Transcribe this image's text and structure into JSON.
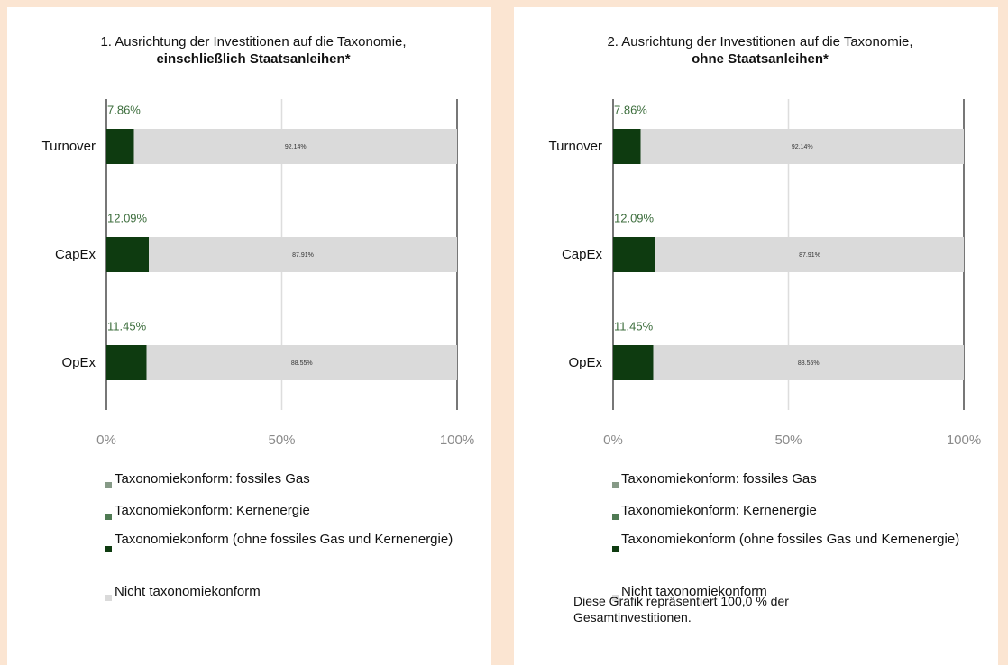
{
  "chart_data": [
    {
      "type": "bar",
      "orientation": "horizontal",
      "stacked": true,
      "title": "1. Ausrichtung der Investitionen auf die Taxonomie,",
      "subtitle": "einschließlich Staatsanleihen*",
      "categories": [
        "Turnover",
        "CapEx",
        "OpEx"
      ],
      "series": [
        {
          "name": "Taxonomiekonform: fossiles Gas",
          "color": "#869a87",
          "values": [
            0,
            0,
            0
          ]
        },
        {
          "name": "Taxonomiekonform: Kernenergie",
          "color": "#4f7a53",
          "values": [
            0,
            0,
            0
          ]
        },
        {
          "name": "Taxonomiekonform (ohne fossiles Gas und Kernenergie)",
          "color": "#0e3b10",
          "values": [
            7.86,
            12.09,
            11.45
          ],
          "value_labels": [
            "7.86%",
            "12.09%",
            "11.45%"
          ]
        },
        {
          "name": "Nicht taxonomiekonform",
          "color": "#dadada",
          "values": [
            92.14,
            87.91,
            88.55
          ],
          "value_labels": [
            "92.14%",
            "87.91%",
            "88.55%"
          ]
        }
      ],
      "xlim": [
        0,
        100
      ],
      "xticks": [
        {
          "value": 0,
          "label": "0%"
        },
        {
          "value": 50,
          "label": "50%"
        },
        {
          "value": 100,
          "label": "100%"
        }
      ]
    },
    {
      "type": "bar",
      "orientation": "horizontal",
      "stacked": true,
      "title": "2. Ausrichtung der Investitionen auf die Taxonomie,",
      "subtitle": "ohne Staatsanleihen*",
      "categories": [
        "Turnover",
        "CapEx",
        "OpEx"
      ],
      "series": [
        {
          "name": "Taxonomiekonform: fossiles Gas",
          "color": "#869a87",
          "values": [
            0,
            0,
            0
          ]
        },
        {
          "name": "Taxonomiekonform: Kernenergie",
          "color": "#4f7a53",
          "values": [
            0,
            0,
            0
          ]
        },
        {
          "name": "Taxonomiekonform (ohne fossiles Gas und Kernenergie)",
          "color": "#0e3b10",
          "values": [
            7.86,
            12.09,
            11.45
          ],
          "value_labels": [
            "7.86%",
            "12.09%",
            "11.45%"
          ]
        },
        {
          "name": "Nicht taxonomiekonform",
          "color": "#dadada",
          "values": [
            92.14,
            87.91,
            88.55
          ],
          "value_labels": [
            "92.14%",
            "87.91%",
            "88.55%"
          ]
        }
      ],
      "xlim": [
        0,
        100
      ],
      "xticks": [
        {
          "value": 0,
          "label": "0%"
        },
        {
          "value": 50,
          "label": "50%"
        },
        {
          "value": 100,
          "label": "100%"
        }
      ],
      "annotation": "Diese Grafik repräsentiert 100,0 % der Gesamtinvestitionen."
    }
  ]
}
